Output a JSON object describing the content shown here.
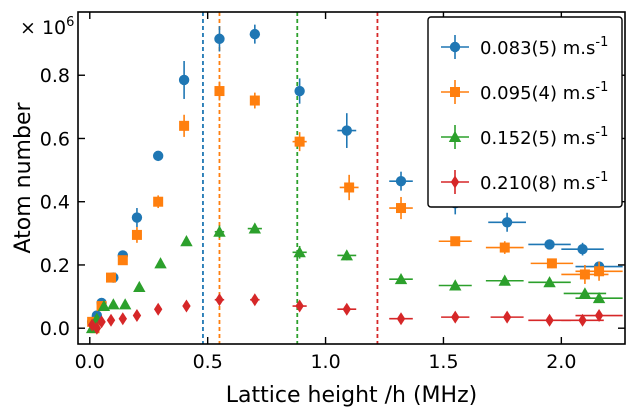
{
  "chart_data": {
    "type": "scatter",
    "title": "",
    "xlabel": "Lattice height /h (MHz)",
    "ylabel": "Atom number",
    "y_multiplier_label": "× 10^6",
    "xlim": [
      -0.05,
      2.27
    ],
    "ylim": [
      -0.05,
      1.0
    ],
    "xticks": [
      0.0,
      0.5,
      1.0,
      1.5,
      2.0
    ],
    "xtick_labels": [
      "0.0",
      "0.5",
      "1.0",
      "1.5",
      "2.0"
    ],
    "yticks": [
      0.0,
      0.2,
      0.4,
      0.6,
      0.8
    ],
    "ytick_labels": [
      "0.0",
      "0.2",
      "0.4",
      "0.6",
      "0.8"
    ],
    "grid": false,
    "legend_position": "top-right",
    "vlines": [
      {
        "x": 0.48,
        "color": "#1f77b4"
      },
      {
        "x": 0.55,
        "color": "#ff7f0e"
      },
      {
        "x": 0.88,
        "color": "#2ca02c"
      },
      {
        "x": 1.22,
        "color": "#d62728"
      }
    ],
    "series": [
      {
        "name": "0.083(5) m.s-1",
        "legend_main": "0.083(5) m.s",
        "legend_sup": "-1",
        "color": "#1f77b4",
        "marker": "circle",
        "points": [
          {
            "x": 0.01,
            "y": 0.02,
            "yerr": 0.01,
            "xerr": 0.01
          },
          {
            "x": 0.03,
            "y": 0.04,
            "yerr": 0.01,
            "xerr": 0.01
          },
          {
            "x": 0.05,
            "y": 0.08,
            "yerr": 0.01,
            "xerr": 0.01
          },
          {
            "x": 0.1,
            "y": 0.16,
            "yerr": 0.01,
            "xerr": 0.01
          },
          {
            "x": 0.14,
            "y": 0.23,
            "yerr": 0.015,
            "xerr": 0.01
          },
          {
            "x": 0.2,
            "y": 0.35,
            "yerr": 0.03,
            "xerr": 0.01
          },
          {
            "x": 0.29,
            "y": 0.545,
            "yerr": 0.01,
            "xerr": 0.01
          },
          {
            "x": 0.4,
            "y": 0.785,
            "yerr": 0.06,
            "xerr": 0.01
          },
          {
            "x": 0.55,
            "y": 0.915,
            "yerr": 0.04,
            "xerr": 0.01
          },
          {
            "x": 0.7,
            "y": 0.93,
            "yerr": 0.03,
            "xerr": 0.01
          },
          {
            "x": 0.89,
            "y": 0.75,
            "yerr": 0.04,
            "xerr": 0.02
          },
          {
            "x": 1.09,
            "y": 0.625,
            "yerr": 0.055,
            "xerr": 0.04
          },
          {
            "x": 1.32,
            "y": 0.465,
            "yerr": 0.03,
            "xerr": 0.05
          },
          {
            "x": 1.55,
            "y": 0.395,
            "yerr": 0.035,
            "xerr": 0.07
          },
          {
            "x": 1.77,
            "y": 0.335,
            "yerr": 0.03,
            "xerr": 0.08
          },
          {
            "x": 1.95,
            "y": 0.265,
            "yerr": 0.015,
            "xerr": 0.09
          },
          {
            "x": 2.09,
            "y": 0.25,
            "yerr": 0.02,
            "xerr": 0.09
          },
          {
            "x": 2.16,
            "y": 0.195,
            "yerr": 0.01,
            "xerr": 0.1
          }
        ]
      },
      {
        "name": "0.095(4) m.s-1",
        "legend_main": "0.095(4) m.s",
        "legend_sup": "-1",
        "color": "#ff7f0e",
        "marker": "square",
        "points": [
          {
            "x": 0.01,
            "y": 0.02,
            "yerr": 0.01,
            "xerr": 0.01
          },
          {
            "x": 0.02,
            "y": 0.0,
            "yerr": 0.01,
            "xerr": 0.01
          },
          {
            "x": 0.05,
            "y": 0.07,
            "yerr": 0.01,
            "xerr": 0.01
          },
          {
            "x": 0.09,
            "y": 0.16,
            "yerr": 0.015,
            "xerr": 0.01
          },
          {
            "x": 0.14,
            "y": 0.215,
            "yerr": 0.015,
            "xerr": 0.01
          },
          {
            "x": 0.2,
            "y": 0.295,
            "yerr": 0.025,
            "xerr": 0.01
          },
          {
            "x": 0.29,
            "y": 0.4,
            "yerr": 0.02,
            "xerr": 0.01
          },
          {
            "x": 0.4,
            "y": 0.64,
            "yerr": 0.035,
            "xerr": 0.01
          },
          {
            "x": 0.55,
            "y": 0.75,
            "yerr": 0.03,
            "xerr": 0.02
          },
          {
            "x": 0.7,
            "y": 0.72,
            "yerr": 0.025,
            "xerr": 0.02
          },
          {
            "x": 0.89,
            "y": 0.59,
            "yerr": 0.03,
            "xerr": 0.03
          },
          {
            "x": 1.1,
            "y": 0.445,
            "yerr": 0.04,
            "xerr": 0.04
          },
          {
            "x": 1.32,
            "y": 0.38,
            "yerr": 0.035,
            "xerr": 0.05
          },
          {
            "x": 1.55,
            "y": 0.275,
            "yerr": 0.015,
            "xerr": 0.07
          },
          {
            "x": 1.76,
            "y": 0.255,
            "yerr": 0.02,
            "xerr": 0.08
          },
          {
            "x": 1.96,
            "y": 0.205,
            "yerr": 0.015,
            "xerr": 0.09
          },
          {
            "x": 2.1,
            "y": 0.17,
            "yerr": 0.03,
            "xerr": 0.1
          },
          {
            "x": 2.16,
            "y": 0.18,
            "yerr": 0.03,
            "xerr": 0.1
          }
        ]
      },
      {
        "name": "0.152(5) m.s-1",
        "legend_main": "0.152(5) m.s",
        "legend_sup": "-1",
        "color": "#2ca02c",
        "marker": "triangle",
        "points": [
          {
            "x": 0.01,
            "y": 0.0,
            "yerr": 0.01,
            "xerr": 0.01
          },
          {
            "x": 0.03,
            "y": 0.03,
            "yerr": 0.01,
            "xerr": 0.01
          },
          {
            "x": 0.06,
            "y": 0.07,
            "yerr": 0.01,
            "xerr": 0.01
          },
          {
            "x": 0.1,
            "y": 0.075,
            "yerr": 0.01,
            "xerr": 0.01
          },
          {
            "x": 0.15,
            "y": 0.075,
            "yerr": 0.01,
            "xerr": 0.01
          },
          {
            "x": 0.21,
            "y": 0.13,
            "yerr": 0.01,
            "xerr": 0.01
          },
          {
            "x": 0.3,
            "y": 0.205,
            "yerr": 0.01,
            "xerr": 0.01
          },
          {
            "x": 0.41,
            "y": 0.275,
            "yerr": 0.01,
            "xerr": 0.01
          },
          {
            "x": 0.55,
            "y": 0.305,
            "yerr": 0.02,
            "xerr": 0.02
          },
          {
            "x": 0.7,
            "y": 0.315,
            "yerr": 0.015,
            "xerr": 0.03
          },
          {
            "x": 0.89,
            "y": 0.24,
            "yerr": 0.02,
            "xerr": 0.03
          },
          {
            "x": 1.09,
            "y": 0.23,
            "yerr": 0.015,
            "xerr": 0.04
          },
          {
            "x": 1.32,
            "y": 0.155,
            "yerr": 0.01,
            "xerr": 0.05
          },
          {
            "x": 1.55,
            "y": 0.135,
            "yerr": 0.01,
            "xerr": 0.07
          },
          {
            "x": 1.76,
            "y": 0.15,
            "yerr": 0.01,
            "xerr": 0.08
          },
          {
            "x": 1.95,
            "y": 0.145,
            "yerr": 0.01,
            "xerr": 0.09
          },
          {
            "x": 2.1,
            "y": 0.11,
            "yerr": 0.01,
            "xerr": 0.09
          },
          {
            "x": 2.16,
            "y": 0.095,
            "yerr": 0.01,
            "xerr": 0.1
          }
        ]
      },
      {
        "name": "0.210(8) m.s-1",
        "legend_main": "0.210(8) m.s",
        "legend_sup": "-1",
        "color": "#d62728",
        "marker": "diamond",
        "points": [
          {
            "x": 0.01,
            "y": 0.01,
            "yerr": 0.01,
            "xerr": 0.01
          },
          {
            "x": 0.03,
            "y": 0.0,
            "yerr": 0.01,
            "xerr": 0.01
          },
          {
            "x": 0.05,
            "y": 0.02,
            "yerr": 0.01,
            "xerr": 0.01
          },
          {
            "x": 0.09,
            "y": 0.025,
            "yerr": 0.01,
            "xerr": 0.01
          },
          {
            "x": 0.14,
            "y": 0.03,
            "yerr": 0.01,
            "xerr": 0.01
          },
          {
            "x": 0.2,
            "y": 0.04,
            "yerr": 0.01,
            "xerr": 0.01
          },
          {
            "x": 0.29,
            "y": 0.06,
            "yerr": 0.01,
            "xerr": 0.01
          },
          {
            "x": 0.41,
            "y": 0.07,
            "yerr": 0.01,
            "xerr": 0.01
          },
          {
            "x": 0.55,
            "y": 0.09,
            "yerr": 0.015,
            "xerr": 0.02
          },
          {
            "x": 0.7,
            "y": 0.09,
            "yerr": 0.01,
            "xerr": 0.02
          },
          {
            "x": 0.89,
            "y": 0.07,
            "yerr": 0.015,
            "xerr": 0.03
          },
          {
            "x": 1.09,
            "y": 0.06,
            "yerr": 0.01,
            "xerr": 0.04
          },
          {
            "x": 1.32,
            "y": 0.03,
            "yerr": 0.01,
            "xerr": 0.05
          },
          {
            "x": 1.55,
            "y": 0.035,
            "yerr": 0.01,
            "xerr": 0.06
          },
          {
            "x": 1.77,
            "y": 0.035,
            "yerr": 0.01,
            "xerr": 0.07
          },
          {
            "x": 1.95,
            "y": 0.025,
            "yerr": 0.01,
            "xerr": 0.09
          },
          {
            "x": 2.09,
            "y": 0.025,
            "yerr": 0.01,
            "xerr": 0.09
          },
          {
            "x": 2.16,
            "y": 0.04,
            "yerr": 0.01,
            "xerr": 0.1
          }
        ]
      }
    ]
  }
}
